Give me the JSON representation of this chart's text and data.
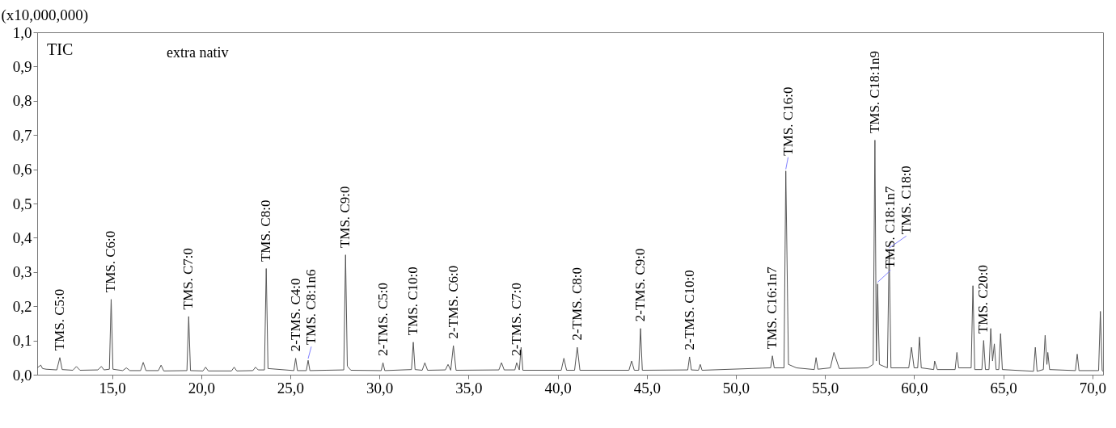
{
  "chart_data": {
    "type": "line",
    "ylabel": "(x10,000,000)",
    "xlim": [
      10.8,
      70.6
    ],
    "ylim": [
      0,
      1
    ],
    "xticks": [
      {
        "value": 15,
        "label": "15,0"
      },
      {
        "value": 20,
        "label": "20,0"
      },
      {
        "value": 25,
        "label": "25,0"
      },
      {
        "value": 30,
        "label": "30,0"
      },
      {
        "value": 35,
        "label": "35,0"
      },
      {
        "value": 40,
        "label": "40,0"
      },
      {
        "value": 45,
        "label": "45,0"
      },
      {
        "value": 50,
        "label": "50,0"
      },
      {
        "value": 55,
        "label": "55,0"
      },
      {
        "value": 60,
        "label": "60,0"
      },
      {
        "value": 65,
        "label": "65,0"
      },
      {
        "value": 70,
        "label": "70,0"
      }
    ],
    "yticks": [
      {
        "value": 0,
        "label": "0,0"
      },
      {
        "value": 0.1,
        "label": "0,1"
      },
      {
        "value": 0.2,
        "label": "0,2"
      },
      {
        "value": 0.3,
        "label": "0,3"
      },
      {
        "value": 0.4,
        "label": "0,4"
      },
      {
        "value": 0.5,
        "label": "0,5"
      },
      {
        "value": 0.6,
        "label": "0,6"
      },
      {
        "value": 0.7,
        "label": "0,7"
      },
      {
        "value": 0.8,
        "label": "0,8"
      },
      {
        "value": 0.9,
        "label": "0,9"
      },
      {
        "value": 1,
        "label": "1,0"
      }
    ],
    "grid": false,
    "marker": "none",
    "line_style": "solid",
    "series": [
      {
        "color": "#555555",
        "x": [
          10.8,
          11.0,
          11.1,
          11.3,
          11.9,
          12.07,
          12.2,
          12.8,
          13.0,
          13.2,
          14.2,
          14.4,
          14.55,
          14.85,
          14.95,
          15.05,
          15.6,
          15.8,
          16.0,
          16.6,
          16.75,
          16.9,
          17.6,
          17.75,
          17.9,
          19.2,
          19.3,
          19.4,
          20.1,
          20.25,
          20.4,
          21.7,
          21.85,
          22.0,
          22.9,
          23.05,
          23.2,
          23.55,
          23.65,
          23.75,
          25.2,
          25.3,
          25.4,
          25.9,
          26.0,
          26.1,
          27.0,
          28.0,
          28.1,
          28.2,
          28.4,
          30.1,
          30.2,
          30.3,
          31.8,
          31.9,
          32.0,
          32.4,
          32.55,
          32.7,
          33.7,
          33.85,
          34.0,
          34.15,
          34.3,
          36.7,
          36.85,
          37.0,
          37.6,
          37.7,
          37.85,
          37.95,
          38.05,
          40.2,
          40.35,
          40.5,
          40.95,
          41.1,
          41.25,
          44.0,
          44.15,
          44.3,
          44.55,
          44.65,
          44.75,
          47.3,
          47.4,
          47.5,
          47.9,
          48.0,
          48.1,
          51.95,
          52.05,
          52.15,
          52.7,
          52.8,
          52.95,
          53.4,
          54.4,
          54.5,
          54.6,
          55.3,
          55.5,
          55.8,
          57.4,
          57.7,
          57.8,
          57.88,
          57.95,
          58.05,
          58.5,
          58.6,
          58.7,
          59.7,
          59.85,
          60.0,
          60.2,
          60.3,
          60.4,
          61.1,
          61.15,
          61.3,
          62.3,
          62.4,
          62.5,
          63.2,
          63.3,
          63.4,
          63.8,
          63.9,
          64.0,
          64.2,
          64.3,
          64.4,
          64.5,
          64.6,
          64.75,
          64.85,
          64.95,
          66.7,
          66.8,
          66.9,
          67.25,
          67.35,
          67.45,
          67.5,
          67.6,
          69.05,
          69.15,
          69.25,
          70.35,
          70.45,
          70.55,
          70.6
        ],
        "values": [
          0.02,
          0.028,
          0.018,
          0.016,
          0.014,
          0.05,
          0.015,
          0.013,
          0.024,
          0.013,
          0.014,
          0.024,
          0.014,
          0.016,
          0.22,
          0.016,
          0.012,
          0.02,
          0.012,
          0.012,
          0.036,
          0.012,
          0.012,
          0.028,
          0.011,
          0.012,
          0.17,
          0.012,
          0.011,
          0.022,
          0.011,
          0.011,
          0.022,
          0.011,
          0.012,
          0.022,
          0.014,
          0.014,
          0.31,
          0.018,
          0.012,
          0.048,
          0.012,
          0.012,
          0.042,
          0.012,
          0.013,
          0.014,
          0.35,
          0.025,
          0.013,
          0.012,
          0.035,
          0.012,
          0.015,
          0.095,
          0.015,
          0.013,
          0.035,
          0.013,
          0.014,
          0.03,
          0.013,
          0.085,
          0.013,
          0.014,
          0.035,
          0.014,
          0.014,
          0.035,
          0.014,
          0.08,
          0.013,
          0.013,
          0.048,
          0.013,
          0.013,
          0.08,
          0.013,
          0.013,
          0.04,
          0.013,
          0.013,
          0.135,
          0.013,
          0.014,
          0.052,
          0.014,
          0.013,
          0.03,
          0.013,
          0.02,
          0.055,
          0.02,
          0.02,
          0.595,
          0.03,
          0.02,
          0.015,
          0.05,
          0.016,
          0.02,
          0.065,
          0.018,
          0.02,
          0.03,
          0.685,
          0.04,
          0.265,
          0.03,
          0.02,
          0.365,
          0.02,
          0.02,
          0.08,
          0.02,
          0.02,
          0.11,
          0.02,
          0.015,
          0.04,
          0.015,
          0.015,
          0.065,
          0.02,
          0.02,
          0.26,
          0.015,
          0.015,
          0.1,
          0.015,
          0.015,
          0.135,
          0.04,
          0.09,
          0.015,
          0.015,
          0.12,
          0.015,
          0.01,
          0.08,
          0.01,
          0.015,
          0.115,
          0.03,
          0.065,
          0.015,
          0.012,
          0.06,
          0.012,
          0.012,
          0.185,
          0.012,
          0.01
        ]
      }
    ],
    "annotations": [
      "TIC",
      "extra nativ",
      {
        "text": "TMS. C5:0",
        "x": 12.07,
        "y": 0.05
      },
      {
        "text": "TMS. C6:0",
        "x": 14.95,
        "y": 0.22
      },
      {
        "text": "TMS. C7:0",
        "x": 19.3,
        "y": 0.17
      },
      {
        "text": "TMS. C8:0",
        "x": 23.65,
        "y": 0.31
      },
      {
        "text": "2-TMS. C4:0",
        "x": 25.3,
        "y": 0.048
      },
      {
        "text": "TMS. C8:1n6",
        "x": 26.0,
        "y": 0.042
      },
      {
        "text": "TMS. C9:0",
        "x": 28.1,
        "y": 0.35
      },
      {
        "text": "2-TMS. C5:0",
        "x": 30.2,
        "y": 0.035
      },
      {
        "text": "TMS. C10:0",
        "x": 31.9,
        "y": 0.095
      },
      {
        "text": "2-TMS. C6:0",
        "x": 34.15,
        "y": 0.085
      },
      {
        "text": "2-TMS. C7:0",
        "x": 37.7,
        "y": 0.035
      },
      {
        "text": "2-TMS. C8:0",
        "x": 41.1,
        "y": 0.08
      },
      {
        "text": "2-TMS. C9:0",
        "x": 44.65,
        "y": 0.135
      },
      {
        "text": "2-TMS. C10:0",
        "x": 47.4,
        "y": 0.052
      },
      {
        "text": "TMS. C16:1n7",
        "x": 52.05,
        "y": 0.055
      },
      {
        "text": "TMS. C16:0",
        "x": 52.8,
        "y": 0.595
      },
      {
        "text": "TMS. C18:1n9",
        "x": 57.8,
        "y": 0.685
      },
      {
        "text": "TMS. C18:1n7",
        "x": 57.95,
        "y": 0.265
      },
      {
        "text": "TMS. C18:0",
        "x": 58.6,
        "y": 0.365
      },
      {
        "text": "TMS. C20:0",
        "x": 63.9,
        "y": 0.1
      }
    ]
  }
}
